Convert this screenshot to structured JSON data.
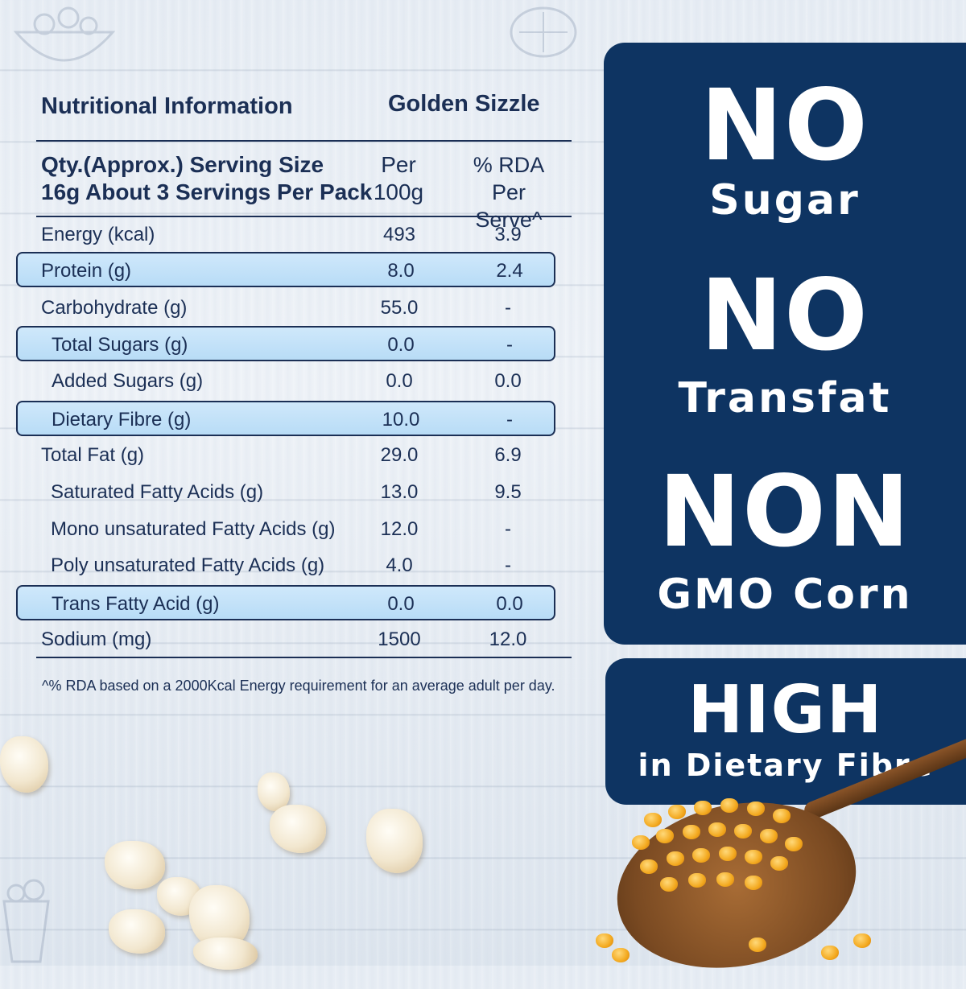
{
  "table": {
    "title": "Nutritional Information",
    "product": "Golden Sizzle",
    "serving_label_line1": "Qty.(Approx.) Serving Size",
    "serving_label_line2": "16g About 3 Servings Per Pack",
    "col_per_line1": "Per",
    "col_per_line2": "100g",
    "col_rda_line1": "% RDA",
    "col_rda_line2": "Per Serve^",
    "rows": [
      {
        "label": "Energy (kcal)",
        "per100g": "493",
        "rda": "3.9"
      },
      {
        "label": "Protein (g)",
        "per100g": "8.0",
        "rda": "2.4"
      },
      {
        "label": "Carbohydrate (g)",
        "per100g": "55.0",
        "rda": "-"
      },
      {
        "label": "Total Sugars (g)",
        "per100g": "0.0",
        "rda": "-"
      },
      {
        "label": "Added Sugars (g)",
        "per100g": "0.0",
        "rda": "0.0"
      },
      {
        "label": "Dietary Fibre (g)",
        "per100g": "10.0",
        "rda": "-"
      },
      {
        "label": "Total Fat (g)",
        "per100g": "29.0",
        "rda": "6.9"
      },
      {
        "label": "Saturated Fatty Acids (g)",
        "per100g": "13.0",
        "rda": "9.5"
      },
      {
        "label": "Mono unsaturated Fatty Acids (g)",
        "per100g": "12.0",
        "rda": "-"
      },
      {
        "label": "Poly unsaturated Fatty Acids (g)",
        "per100g": "4.0",
        "rda": "-"
      },
      {
        "label": "Trans Fatty Acid (g)",
        "per100g": "0.0",
        "rda": "0.0"
      },
      {
        "label": "Sodium (mg)",
        "per100g": "1500",
        "rda": "12.0"
      }
    ],
    "footnote": "^% RDA based on a 2000Kcal Energy requirement for an average adult per day."
  },
  "claims": {
    "no_sugar_big": "NO",
    "no_sugar_small": "Sugar",
    "no_transfat_big": "NO",
    "no_transfat_small": "Transfat",
    "non_gmo_big": "NON",
    "non_gmo_small": "GMO Corn",
    "high_big": "HIGH",
    "high_small": "in Dietary Fibre"
  },
  "colors": {
    "navy": "#0e3462",
    "table_text": "#1b2f55",
    "highlight": "#c4e2f8"
  }
}
